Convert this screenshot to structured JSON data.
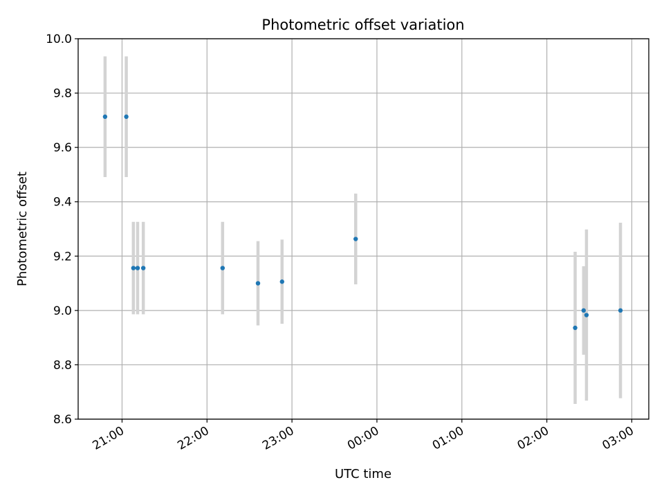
{
  "chart_data": {
    "type": "scatter",
    "title": "Photometric offset variation",
    "xlabel": "UTC time",
    "ylabel": "Photometric offset",
    "ylim": [
      8.6,
      10.0
    ],
    "xlim": [
      "20:29",
      "03:12"
    ],
    "grid": true,
    "colors": {
      "marker": "#1f77b4",
      "errorbar": "#d3d3d3",
      "grid": "#b0b0b0"
    },
    "x_ticks": [
      "21:00",
      "22:00",
      "23:00",
      "00:00",
      "01:00",
      "02:00",
      "03:00"
    ],
    "y_ticks": [
      "8.6",
      "8.8",
      "9.0",
      "9.2",
      "9.4",
      "9.6",
      "9.8",
      "10.0"
    ],
    "points": [
      {
        "x": "20:48",
        "y": 9.713,
        "err": 0.222
      },
      {
        "x": "21:03",
        "y": 9.713,
        "err": 0.222
      },
      {
        "x": "21:08",
        "y": 9.156,
        "err": 0.17
      },
      {
        "x": "21:11",
        "y": 9.156,
        "err": 0.17
      },
      {
        "x": "21:15",
        "y": 9.156,
        "err": 0.17
      },
      {
        "x": "22:11",
        "y": 9.156,
        "err": 0.17
      },
      {
        "x": "22:36",
        "y": 9.1,
        "err": 0.155
      },
      {
        "x": "22:53",
        "y": 9.106,
        "err": 0.155
      },
      {
        "x": "23:45",
        "y": 9.263,
        "err": 0.167
      },
      {
        "x": "02:20",
        "y": 8.936,
        "err": 0.28
      },
      {
        "x": "02:26",
        "y": 9.0,
        "err": 0.163
      },
      {
        "x": "02:28",
        "y": 8.983,
        "err": 0.315
      },
      {
        "x": "02:52",
        "y": 9.0,
        "err": 0.323
      }
    ]
  }
}
